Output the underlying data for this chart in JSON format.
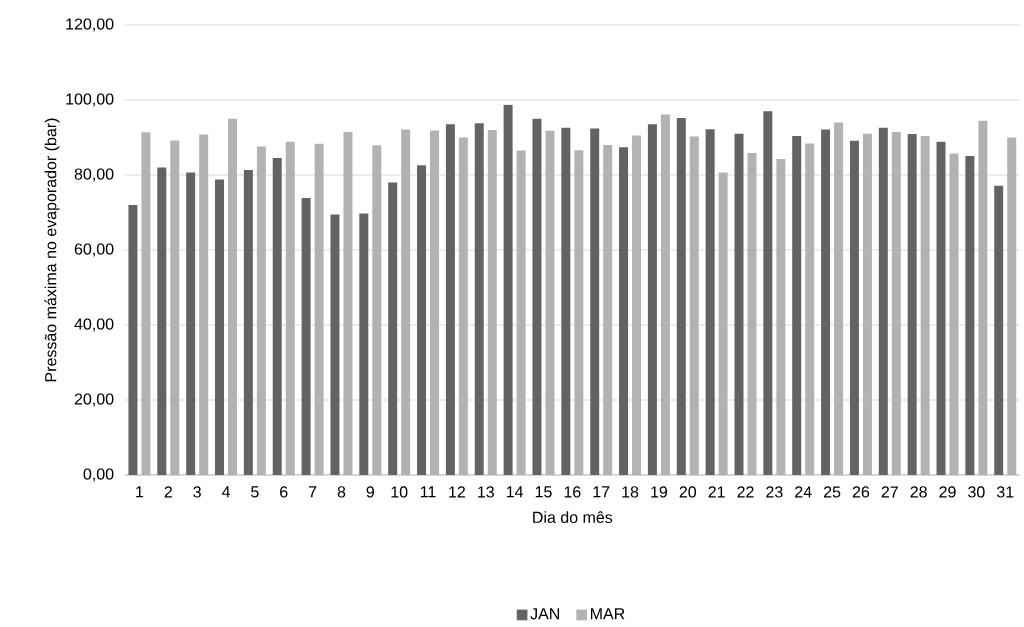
{
  "chart_data": {
    "type": "bar",
    "xlabel": "Dia do mês",
    "ylabel": "Pressão máxima no evaporador (bar)",
    "categories": [
      "1",
      "2",
      "3",
      "4",
      "5",
      "6",
      "7",
      "8",
      "9",
      "10",
      "11",
      "12",
      "13",
      "14",
      "15",
      "16",
      "17",
      "18",
      "19",
      "20",
      "21",
      "22",
      "23",
      "24",
      "25",
      "26",
      "27",
      "28",
      "29",
      "30",
      "31"
    ],
    "series": [
      {
        "name": "JAN",
        "color": "#636363",
        "values": [
          72.0,
          82.0,
          80.7,
          78.8,
          81.3,
          84.5,
          73.9,
          69.5,
          69.7,
          78.0,
          82.6,
          93.5,
          93.8,
          98.7,
          95.0,
          92.6,
          92.4,
          87.4,
          93.5,
          95.2,
          92.2,
          91.0,
          97.0,
          90.4,
          92.1,
          89.1,
          92.6,
          90.9,
          88.9,
          85.1,
          77.1
        ]
      },
      {
        "name": "MAR",
        "color": "#b2b2b2",
        "values": [
          91.4,
          89.2,
          90.8,
          95.0,
          87.6,
          88.9,
          88.3,
          91.5,
          87.9,
          92.1,
          91.9,
          90.0,
          92.0,
          86.5,
          91.8,
          86.6,
          88.0,
          90.5,
          96.1,
          90.3,
          80.7,
          85.9,
          84.3,
          88.4,
          94.0,
          91.0,
          91.5,
          90.4,
          85.7,
          94.5,
          90.0
        ]
      }
    ],
    "ylim": [
      0,
      120
    ],
    "yticks": [
      {
        "value": 0,
        "label": "0,00"
      },
      {
        "value": 20,
        "label": "20,00"
      },
      {
        "value": 40,
        "label": "40,00"
      },
      {
        "value": 60,
        "label": "60,00"
      },
      {
        "value": 80,
        "label": "80,00"
      },
      {
        "value": 100,
        "label": "100,00"
      },
      {
        "value": 120,
        "label": "120,00"
      }
    ],
    "grid": "y",
    "legend": "bottom"
  }
}
